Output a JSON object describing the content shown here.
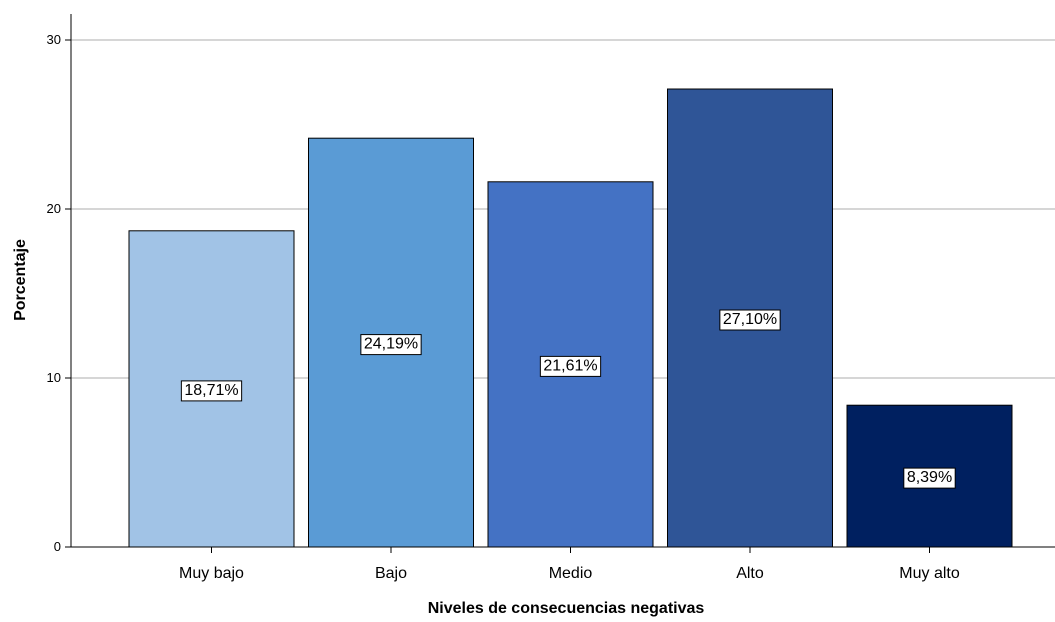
{
  "chart_data": {
    "type": "bar",
    "categories": [
      "Muy bajo",
      "Bajo",
      "Medio",
      "Alto",
      "Muy alto"
    ],
    "values": [
      18.71,
      24.19,
      21.61,
      27.1,
      8.39
    ],
    "data_labels": [
      "18,71%",
      "24,19%",
      "21,61%",
      "27,10%",
      "8,39%"
    ],
    "colors": [
      "#a1c3e6",
      "#5a9bd5",
      "#4472c4",
      "#2f5597",
      "#002060"
    ],
    "xlabel": "Niveles de consecuencias negativas",
    "ylabel": "Porcentaje",
    "ylim": [
      0,
      31.5
    ],
    "yticks": [
      0,
      10,
      20,
      30
    ],
    "grid": true,
    "legend": false
  }
}
